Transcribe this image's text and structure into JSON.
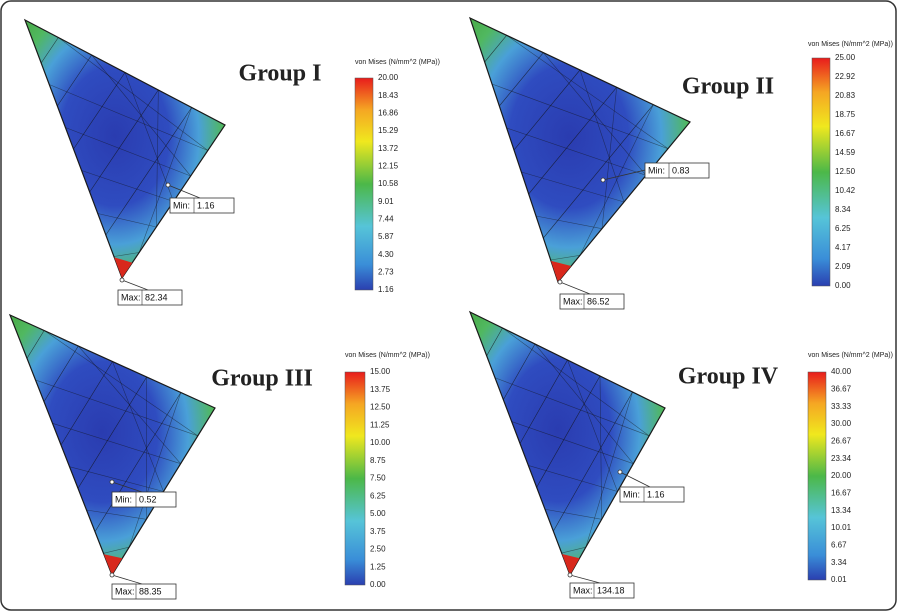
{
  "panels": [
    {
      "title": "Group I",
      "legend_title": "von Mises (N/mm^2 (MPa))",
      "legend_ticks": [
        "20.00",
        "18.43",
        "16.86",
        "15.29",
        "13.72",
        "12.15",
        "10.58",
        "9.01",
        "7.44",
        "5.87",
        "4.30",
        "2.73",
        "1.16"
      ],
      "min": {
        "label": "Min:",
        "value": "1.16"
      },
      "max": {
        "label": "Max:",
        "value": "82.34"
      }
    },
    {
      "title": "Group II",
      "legend_title": "von Mises (N/mm^2 (MPa))",
      "legend_ticks": [
        "25.00",
        "22.92",
        "20.83",
        "18.75",
        "16.67",
        "14.59",
        "12.50",
        "10.42",
        "8.34",
        "6.25",
        "4.17",
        "2.09",
        "0.00"
      ],
      "min": {
        "label": "Min:",
        "value": "0.83"
      },
      "max": {
        "label": "Max:",
        "value": "86.52"
      }
    },
    {
      "title": "Group III",
      "legend_title": "von Mises (N/mm^2 (MPa))",
      "legend_ticks": [
        "15.00",
        "13.75",
        "12.50",
        "11.25",
        "10.00",
        "8.75",
        "7.50",
        "6.25",
        "5.00",
        "3.75",
        "2.50",
        "1.25",
        "0.00"
      ],
      "min": {
        "label": "Min:",
        "value": "0.52"
      },
      "max": {
        "label": "Max:",
        "value": "88.35"
      }
    },
    {
      "title": "Group IV",
      "legend_title": "von Mises (N/mm^2 (MPa))",
      "legend_ticks": [
        "40.00",
        "36.67",
        "33.33",
        "30.00",
        "26.67",
        "23.34",
        "20.00",
        "16.67",
        "13.34",
        "10.01",
        "6.67",
        "3.34",
        "0.01"
      ],
      "min": {
        "label": "Min:",
        "value": "1.16"
      },
      "max": {
        "label": "Max:",
        "value": "134.18"
      }
    }
  ]
}
